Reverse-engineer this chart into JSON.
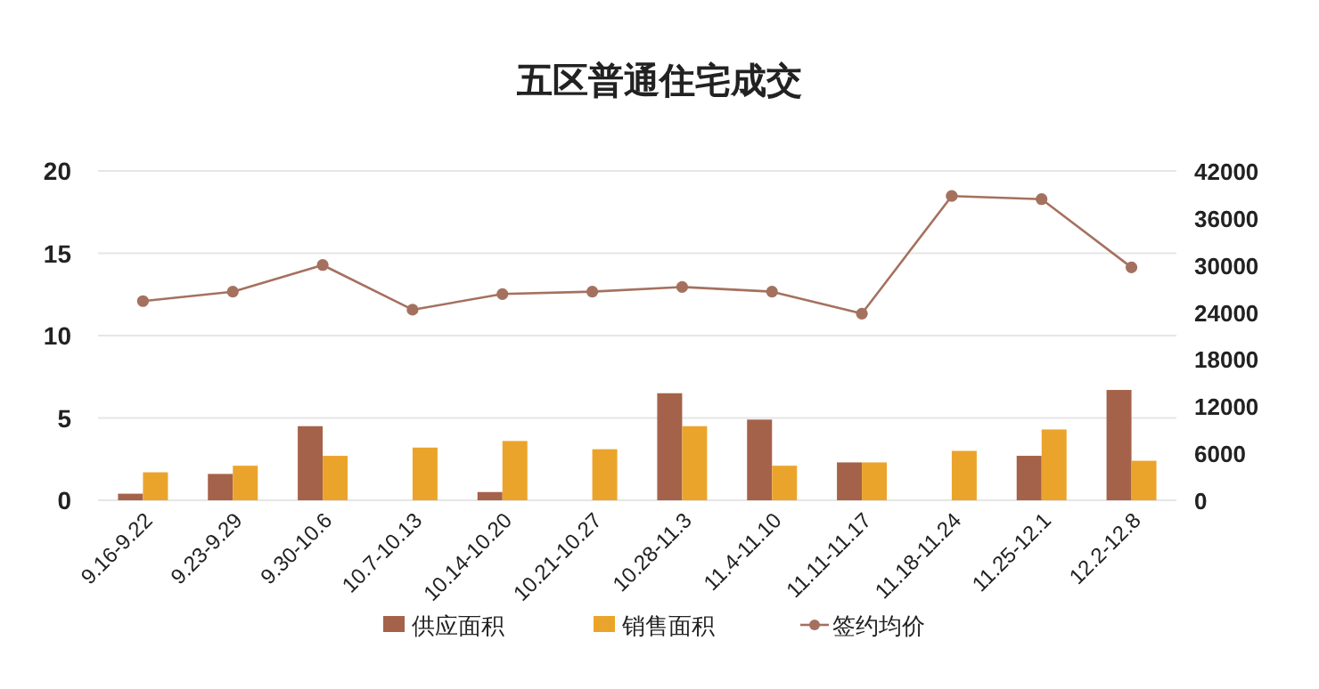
{
  "chart_data": {
    "type": "bar",
    "title": "五区普通住宅成交",
    "categories": [
      "9.16-9.22",
      "9.23-9.29",
      "9.30-10.6",
      "10.7-10.13",
      "10.14-10.20",
      "10.21-10.27",
      "10.28-11.3",
      "11.4-11.10",
      "11.11-11.17",
      "11.18-11.24",
      "11.25-12.1",
      "12.2-12.8"
    ],
    "series": [
      {
        "name": "供应面积",
        "color": "#a5624a",
        "values": [
          0.4,
          1.6,
          4.5,
          0,
          0.5,
          0,
          6.5,
          4.9,
          2.3,
          0,
          2.7,
          6.7
        ]
      },
      {
        "name": "销售面积",
        "color": "#eba42b",
        "values": [
          1.7,
          2.1,
          2.7,
          3.2,
          3.6,
          3.1,
          4.5,
          2.1,
          2.3,
          3.0,
          4.3,
          2.4
        ]
      },
      {
        "name": "签约均价",
        "type": "line",
        "axis": "y2",
        "color": "#a5715f",
        "marker": "circle",
        "values": [
          25400,
          26600,
          30000,
          24300,
          26300,
          26600,
          27200,
          26600,
          23800,
          38800,
          38400,
          29700
        ]
      }
    ],
    "ylim": [
      0,
      20
    ],
    "yticks": [
      0,
      5,
      10,
      15,
      20
    ],
    "y2lim": [
      0,
      42000
    ],
    "y2ticks": [
      0,
      6000,
      12000,
      18000,
      24000,
      30000,
      36000,
      42000
    ],
    "grid": "y",
    "legend": "bottom"
  }
}
